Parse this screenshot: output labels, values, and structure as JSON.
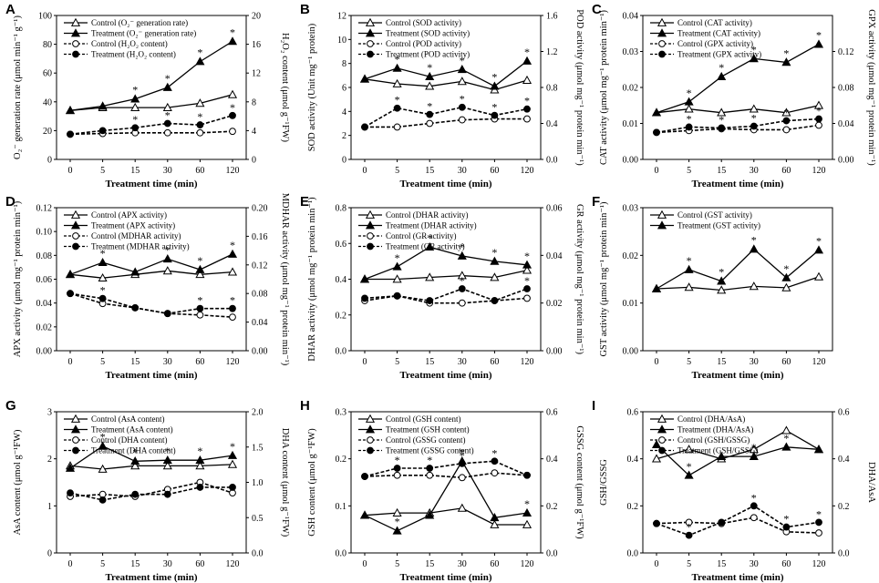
{
  "chart_data": [
    {
      "type": "line",
      "panel": "A",
      "x": [
        "0",
        "5",
        "15",
        "30",
        "60",
        "120"
      ],
      "xlabel": "Treatment time (min)",
      "ylabel": "O₂⁻ generation rate (μmol min⁻¹ g⁻¹)",
      "y2label": "H₂O₂ content (μmol g⁻¹FW)",
      "ylim": [
        0,
        100
      ],
      "yticks": [
        "0",
        "20",
        "40",
        "60",
        "80",
        "100"
      ],
      "y2lim": [
        0,
        20
      ],
      "y2ticks": [
        "0",
        "4",
        "8",
        "12",
        "16",
        "20"
      ],
      "series": [
        {
          "name": "Control (O₂⁻ generation rate)",
          "axis": "left",
          "marker": "open-triangle",
          "dashed": false,
          "values": [
            34,
            36,
            36,
            36,
            39,
            45
          ]
        },
        {
          "name": "Treatment (O₂⁻ generation rate)",
          "axis": "left",
          "marker": "filled-triangle",
          "dashed": false,
          "values": [
            34,
            37,
            42,
            50,
            68,
            82
          ],
          "stars": [
            false,
            false,
            true,
            true,
            true,
            true
          ]
        },
        {
          "name": "Control (H₂O₂ content)",
          "axis": "right",
          "marker": "open-circle",
          "dashed": true,
          "values": [
            3.5,
            3.6,
            3.7,
            3.7,
            3.7,
            3.9
          ]
        },
        {
          "name": "Treatment (H₂O₂ content)",
          "axis": "right",
          "marker": "filled-circle",
          "dashed": true,
          "values": [
            3.5,
            4.0,
            4.4,
            5.0,
            4.8,
            6.1
          ],
          "stars": [
            false,
            false,
            true,
            true,
            true,
            true
          ]
        }
      ]
    },
    {
      "type": "line",
      "panel": "B",
      "x": [
        "0",
        "5",
        "15",
        "30",
        "60",
        "120"
      ],
      "xlabel": "Treatment time (min)",
      "ylabel": "SOD activity (Unit mg⁻¹ protein)",
      "y2label": "POD activity (μmol mg⁻¹ protein min⁻¹)",
      "ylim": [
        0,
        12
      ],
      "yticks": [
        "0",
        "2",
        "4",
        "6",
        "8",
        "10",
        "12"
      ],
      "y2lim": [
        0,
        1.6
      ],
      "y2ticks": [
        "0.0",
        "0.4",
        "0.8",
        "1.2",
        "1.6"
      ],
      "series": [
        {
          "name": "Control (SOD activity)",
          "axis": "left",
          "marker": "open-triangle",
          "dashed": false,
          "values": [
            6.7,
            6.3,
            6.1,
            6.5,
            5.8,
            6.6
          ]
        },
        {
          "name": "Treatment (SOD activity)",
          "axis": "left",
          "marker": "filled-triangle",
          "dashed": false,
          "values": [
            6.7,
            7.6,
            6.9,
            7.5,
            6.1,
            8.2
          ],
          "stars": [
            false,
            true,
            true,
            true,
            true,
            true
          ]
        },
        {
          "name": "Control (POD activity)",
          "axis": "right",
          "marker": "open-circle",
          "dashed": true,
          "values": [
            0.36,
            0.36,
            0.4,
            0.44,
            0.45,
            0.45
          ]
        },
        {
          "name": "Treatment (POD activity)",
          "axis": "right",
          "marker": "filled-circle",
          "dashed": true,
          "values": [
            0.36,
            0.57,
            0.5,
            0.58,
            0.49,
            0.56
          ],
          "stars": [
            false,
            true,
            true,
            true,
            true,
            true
          ]
        }
      ]
    },
    {
      "type": "line",
      "panel": "C",
      "x": [
        "0",
        "5",
        "15",
        "30",
        "60",
        "120"
      ],
      "xlabel": "Treatment time (min)",
      "ylabel": "CAT activity (μmol mg⁻¹ protein min⁻¹)",
      "y2label": "GPX activity (μmol mg⁻¹ protein min⁻¹)",
      "ylim": [
        0,
        0.04
      ],
      "yticks": [
        "0.00",
        "0.01",
        "0.02",
        "0.03",
        "0.04"
      ],
      "y2lim": [
        0,
        0.16
      ],
      "y2ticks": [
        "0.00",
        "0.04",
        "0.08",
        "0.12"
      ],
      "series": [
        {
          "name": "Control (CAT activity)",
          "axis": "left",
          "marker": "open-triangle",
          "dashed": false,
          "values": [
            0.013,
            0.014,
            0.013,
            0.014,
            0.013,
            0.015
          ]
        },
        {
          "name": "Treatment (CAT activity)",
          "axis": "left",
          "marker": "filled-triangle",
          "dashed": false,
          "values": [
            0.013,
            0.016,
            0.023,
            0.028,
            0.027,
            0.032
          ],
          "stars": [
            false,
            true,
            true,
            true,
            true,
            true
          ]
        },
        {
          "name": "Control (GPX activity)",
          "axis": "right",
          "marker": "open-circle",
          "dashed": true,
          "values": [
            0.03,
            0.032,
            0.034,
            0.033,
            0.033,
            0.038
          ]
        },
        {
          "name": "Treatment (GPX activity)",
          "axis": "right",
          "marker": "filled-circle",
          "dashed": true,
          "values": [
            0.03,
            0.036,
            0.035,
            0.037,
            0.043,
            0.045
          ],
          "stars": [
            false,
            true,
            true,
            true,
            true,
            true
          ]
        }
      ]
    },
    {
      "type": "line",
      "panel": "D",
      "x": [
        "0",
        "5",
        "15",
        "30",
        "60",
        "120"
      ],
      "xlabel": "Treatment time (min)",
      "ylabel": "APX activity (μmol mg⁻¹ protein min⁻¹)",
      "y2label": "MDHAR activity (μmol mg⁻¹ protein min⁻¹)",
      "ylim": [
        0,
        0.12
      ],
      "yticks": [
        "0.00",
        "0.02",
        "0.04",
        "0.06",
        "0.08",
        "0.10",
        "0.12"
      ],
      "y2lim": [
        0,
        0.2
      ],
      "y2ticks": [
        "0.00",
        "0.04",
        "0.08",
        "0.12",
        "0.16",
        "0.20"
      ],
      "series": [
        {
          "name": "Control (APX activity)",
          "axis": "left",
          "marker": "open-triangle",
          "dashed": false,
          "values": [
            0.064,
            0.061,
            0.064,
            0.067,
            0.064,
            0.066
          ]
        },
        {
          "name": "Treatment (APX activity)",
          "axis": "left",
          "marker": "filled-triangle",
          "dashed": false,
          "values": [
            0.064,
            0.074,
            0.066,
            0.077,
            0.068,
            0.081
          ],
          "stars": [
            false,
            true,
            false,
            true,
            true,
            true
          ]
        },
        {
          "name": "Control (MDHAR activity)",
          "axis": "right",
          "marker": "open-circle",
          "dashed": true,
          "values": [
            0.08,
            0.066,
            0.06,
            0.052,
            0.05,
            0.047
          ]
        },
        {
          "name": "Treatment (MDHAR activity)",
          "axis": "right",
          "marker": "filled-circle",
          "dashed": true,
          "values": [
            0.08,
            0.073,
            0.06,
            0.052,
            0.059,
            0.059
          ],
          "stars": [
            false,
            true,
            false,
            false,
            true,
            true
          ]
        }
      ]
    },
    {
      "type": "line",
      "panel": "E",
      "x": [
        "0",
        "5",
        "15",
        "30",
        "60",
        "120"
      ],
      "xlabel": "Treatment time (min)",
      "ylabel": "DHAR activity (μmol mg⁻¹ protein min⁻¹)",
      "y2label": "GR activity (μmol mg⁻¹ protein min⁻¹)",
      "ylim": [
        0,
        0.8
      ],
      "yticks": [
        "0.0",
        "0.2",
        "0.4",
        "0.6",
        "0.8"
      ],
      "y2lim": [
        0,
        0.06
      ],
      "y2ticks": [
        "0.00",
        "0.02",
        "0.04",
        "0.06"
      ],
      "series": [
        {
          "name": "Control (DHAR activity)",
          "axis": "left",
          "marker": "open-triangle",
          "dashed": false,
          "values": [
            0.4,
            0.4,
            0.41,
            0.42,
            0.41,
            0.45
          ]
        },
        {
          "name": "Treatment (DHAR activity)",
          "axis": "left",
          "marker": "filled-triangle",
          "dashed": false,
          "values": [
            0.4,
            0.47,
            0.58,
            0.53,
            0.5,
            0.48
          ],
          "stars": [
            false,
            true,
            true,
            true,
            true,
            true
          ]
        },
        {
          "name": "Control (GR activity)",
          "axis": "right",
          "marker": "open-circle",
          "dashed": true,
          "values": [
            0.021,
            0.023,
            0.02,
            0.02,
            0.021,
            0.022
          ]
        },
        {
          "name": "Treatment (GR activity)",
          "axis": "right",
          "marker": "filled-circle",
          "dashed": true,
          "values": [
            0.022,
            0.023,
            0.021,
            0.026,
            0.021,
            0.026
          ],
          "stars": [
            false,
            false,
            false,
            true,
            false,
            true
          ]
        }
      ]
    },
    {
      "type": "line",
      "panel": "F",
      "x": [
        "0",
        "5",
        "15",
        "30",
        "60",
        "120"
      ],
      "xlabel": "Treatment time (min)",
      "ylabel": "GST activity (μmol mg⁻¹ protein min⁻¹)",
      "y2label": "",
      "ylim": [
        0,
        0.03
      ],
      "yticks": [
        "0.00",
        "0.01",
        "0.02",
        "0.03"
      ],
      "series": [
        {
          "name": "Control (GST activity)",
          "axis": "left",
          "marker": "open-triangle",
          "dashed": false,
          "values": [
            0.013,
            0.0133,
            0.0127,
            0.0135,
            0.0132,
            0.0155
          ]
        },
        {
          "name": "Treatment (GST activity)",
          "axis": "left",
          "marker": "filled-triangle",
          "dashed": false,
          "values": [
            0.013,
            0.017,
            0.0146,
            0.0213,
            0.0153,
            0.0211
          ],
          "stars": [
            false,
            true,
            true,
            true,
            true,
            true
          ]
        }
      ]
    },
    {
      "type": "line",
      "panel": "G",
      "x": [
        "0",
        "5",
        "15",
        "30",
        "60",
        "120"
      ],
      "xlabel": "Treatment time (min)",
      "ylabel": "AsA content (μmol g⁻¹FW)",
      "y2label": "DHA content (μmol g⁻¹FW)",
      "ylim": [
        0,
        3
      ],
      "yticks": [
        "0",
        "1",
        "2",
        "3"
      ],
      "y2lim": [
        0,
        2
      ],
      "y2ticks": [
        "0.0",
        "0.5",
        "1.0",
        "1.5",
        "2.0"
      ],
      "series": [
        {
          "name": "Control (AsA content)",
          "axis": "left",
          "marker": "open-triangle",
          "dashed": false,
          "values": [
            1.85,
            1.78,
            1.85,
            1.85,
            1.85,
            1.88
          ]
        },
        {
          "name": "Treatment (AsA content)",
          "axis": "left",
          "marker": "filled-triangle",
          "dashed": false,
          "values": [
            1.8,
            2.27,
            1.95,
            1.97,
            1.97,
            2.07
          ],
          "stars": [
            false,
            true,
            true,
            true,
            true,
            true
          ]
        },
        {
          "name": "Control (DHA content)",
          "axis": "right",
          "marker": "open-circle",
          "dashed": true,
          "values": [
            0.8,
            0.83,
            0.8,
            0.9,
            1.0,
            0.85
          ]
        },
        {
          "name": "Treatment (DHA content)",
          "axis": "right",
          "marker": "filled-circle",
          "dashed": true,
          "values": [
            0.85,
            0.75,
            0.83,
            0.83,
            0.93,
            0.93
          ]
        }
      ]
    },
    {
      "type": "line",
      "panel": "H",
      "x": [
        "0",
        "5",
        "15",
        "30",
        "60",
        "120"
      ],
      "xlabel": "Treatment time (min)",
      "ylabel": "GSH content (μmol g⁻¹FW)",
      "y2label": "GSSG content (μmol g⁻¹FW)",
      "ylim": [
        0,
        0.3
      ],
      "yticks": [
        "0.0",
        "0.1",
        "0.2",
        "0.3"
      ],
      "y2lim": [
        0,
        0.6
      ],
      "y2ticks": [
        "0.0",
        "0.2",
        "0.4",
        "0.6"
      ],
      "series": [
        {
          "name": "Control (GSH content)",
          "axis": "left",
          "marker": "open-triangle",
          "dashed": false,
          "values": [
            0.08,
            0.085,
            0.085,
            0.095,
            0.06,
            0.06
          ]
        },
        {
          "name": "Treatment (GSH content)",
          "axis": "left",
          "marker": "filled-triangle",
          "dashed": false,
          "values": [
            0.08,
            0.047,
            0.08,
            0.195,
            0.075,
            0.085
          ],
          "stars": [
            false,
            true,
            false,
            true,
            false,
            true
          ]
        },
        {
          "name": "Control (GSSG content)",
          "axis": "right",
          "marker": "open-circle",
          "dashed": true,
          "values": [
            0.325,
            0.33,
            0.33,
            0.32,
            0.34,
            0.33
          ]
        },
        {
          "name": "Treatment (GSSG content)",
          "axis": "right",
          "marker": "filled-circle",
          "dashed": true,
          "values": [
            0.325,
            0.36,
            0.36,
            0.38,
            0.39,
            0.33
          ],
          "stars": [
            false,
            true,
            true,
            true,
            true,
            false
          ]
        }
      ]
    },
    {
      "type": "line",
      "panel": "I",
      "x": [
        "0",
        "5",
        "15",
        "30",
        "60",
        "120"
      ],
      "xlabel": "Treatment time (min)",
      "ylabel": "GSH/GSSG",
      "y2label": "DHA/AsA",
      "ylim": [
        0,
        0.6
      ],
      "yticks": [
        "0.0",
        "0.2",
        "0.4",
        "0.6"
      ],
      "y2lim": [
        0,
        0.6
      ],
      "y2ticks": [
        "0.0",
        "0.2",
        "0.4",
        "0.6"
      ],
      "series": [
        {
          "name": "Control (DHA/AsA)",
          "axis": "right",
          "marker": "open-triangle",
          "dashed": false,
          "values": [
            0.4,
            0.44,
            0.4,
            0.44,
            0.52,
            0.44
          ]
        },
        {
          "name": "Treatment (DHA/AsA)",
          "axis": "right",
          "marker": "filled-triangle",
          "dashed": false,
          "values": [
            0.46,
            0.33,
            0.41,
            0.41,
            0.45,
            0.44
          ],
          "stars": [
            false,
            true,
            false,
            true,
            true,
            false
          ]
        },
        {
          "name": "Control (GSH/GSSG)",
          "axis": "left",
          "marker": "open-circle",
          "dashed": true,
          "values": [
            0.125,
            0.13,
            0.125,
            0.15,
            0.09,
            0.085
          ]
        },
        {
          "name": "Treatment (GSH/GSSG)",
          "axis": "left",
          "marker": "filled-circle",
          "dashed": true,
          "values": [
            0.125,
            0.075,
            0.13,
            0.2,
            0.11,
            0.13
          ],
          "stars": [
            false,
            true,
            false,
            true,
            true,
            true
          ]
        }
      ]
    }
  ]
}
